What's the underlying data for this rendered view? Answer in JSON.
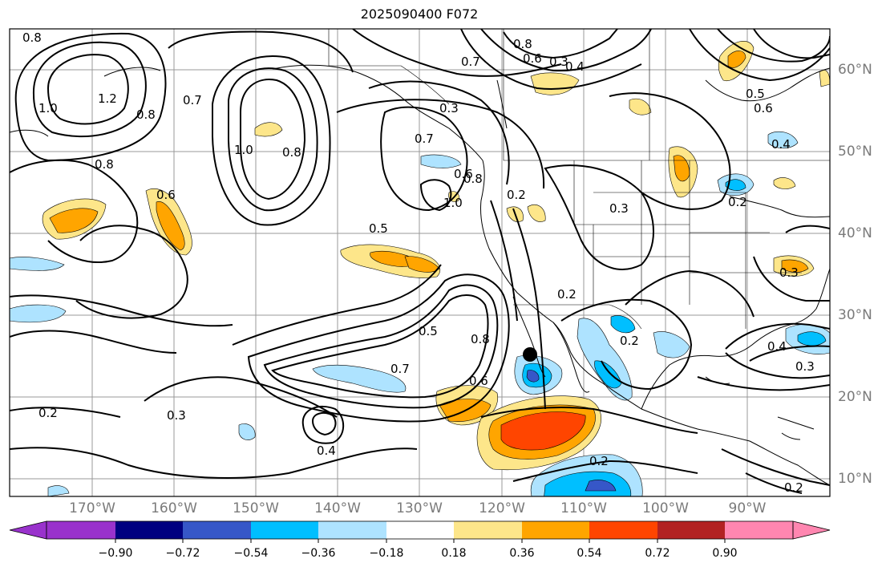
{
  "title": "2025090400 F072",
  "map": {
    "lon_labels": [
      "170°W",
      "160°W",
      "150°W",
      "140°W",
      "130°W",
      "120°W",
      "110°W",
      "100°W",
      "90°W"
    ],
    "lat_labels": [
      "60°N",
      "50°N",
      "40°N",
      "30°N",
      "20°N",
      "10°N"
    ],
    "contour_labels": [
      "0.8",
      "1.0",
      "1.2",
      "0.8",
      "0.7",
      "1.0",
      "0.8",
      "0.6",
      "0.8",
      "0.6",
      "0.5",
      "0.3",
      "0.7",
      "0.6",
      "0.8",
      "0.7",
      "1.0",
      "0.8",
      "0.6",
      "0.5",
      "0.4",
      "0.3",
      "0.2",
      "0.3",
      "0.2",
      "0.3",
      "0.5",
      "0.8",
      "0.7",
      "0.6",
      "0.2",
      "0.2",
      "0.3",
      "0.4",
      "0.2",
      "0.2",
      "0.4",
      "0.3",
      "0.4",
      "0.2"
    ],
    "marker": "black-dot"
  },
  "colorbar": {
    "ticks": [
      "−0.90",
      "−0.72",
      "−0.54",
      "−0.36",
      "−0.18",
      "0.18",
      "0.36",
      "0.54",
      "0.72",
      "0.90"
    ],
    "colors": [
      "#9932cc",
      "#000080",
      "#3657c8",
      "#00bfff",
      "#aee3ff",
      "#ffffff",
      "#fde68a",
      "#ffa500",
      "#ff4500",
      "#b22222",
      "#ff86b0"
    ]
  }
}
